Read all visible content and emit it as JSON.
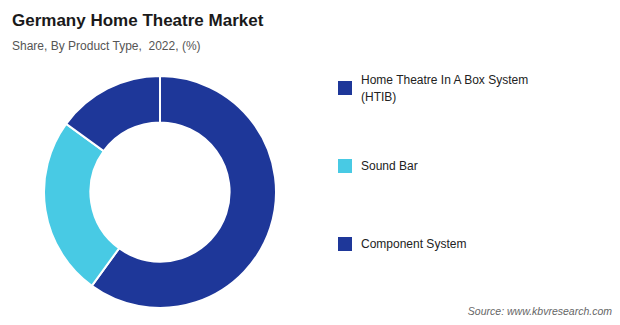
{
  "chart_data": {
    "type": "donut",
    "title": "Germany Home Theatre Market",
    "subtitle": "Share, By Product Type,  2022, (%)",
    "categories": [
      "Home Theatre In A Box System\n(HTIB)",
      "Sound Bar",
      "Component System"
    ],
    "values": [
      60,
      25,
      15
    ],
    "colors": [
      "#1e3799",
      "#48cae4",
      "#1e3799"
    ],
    "legend": "right",
    "annotations": [
      "Source: www.kbvresearch.com"
    ]
  }
}
